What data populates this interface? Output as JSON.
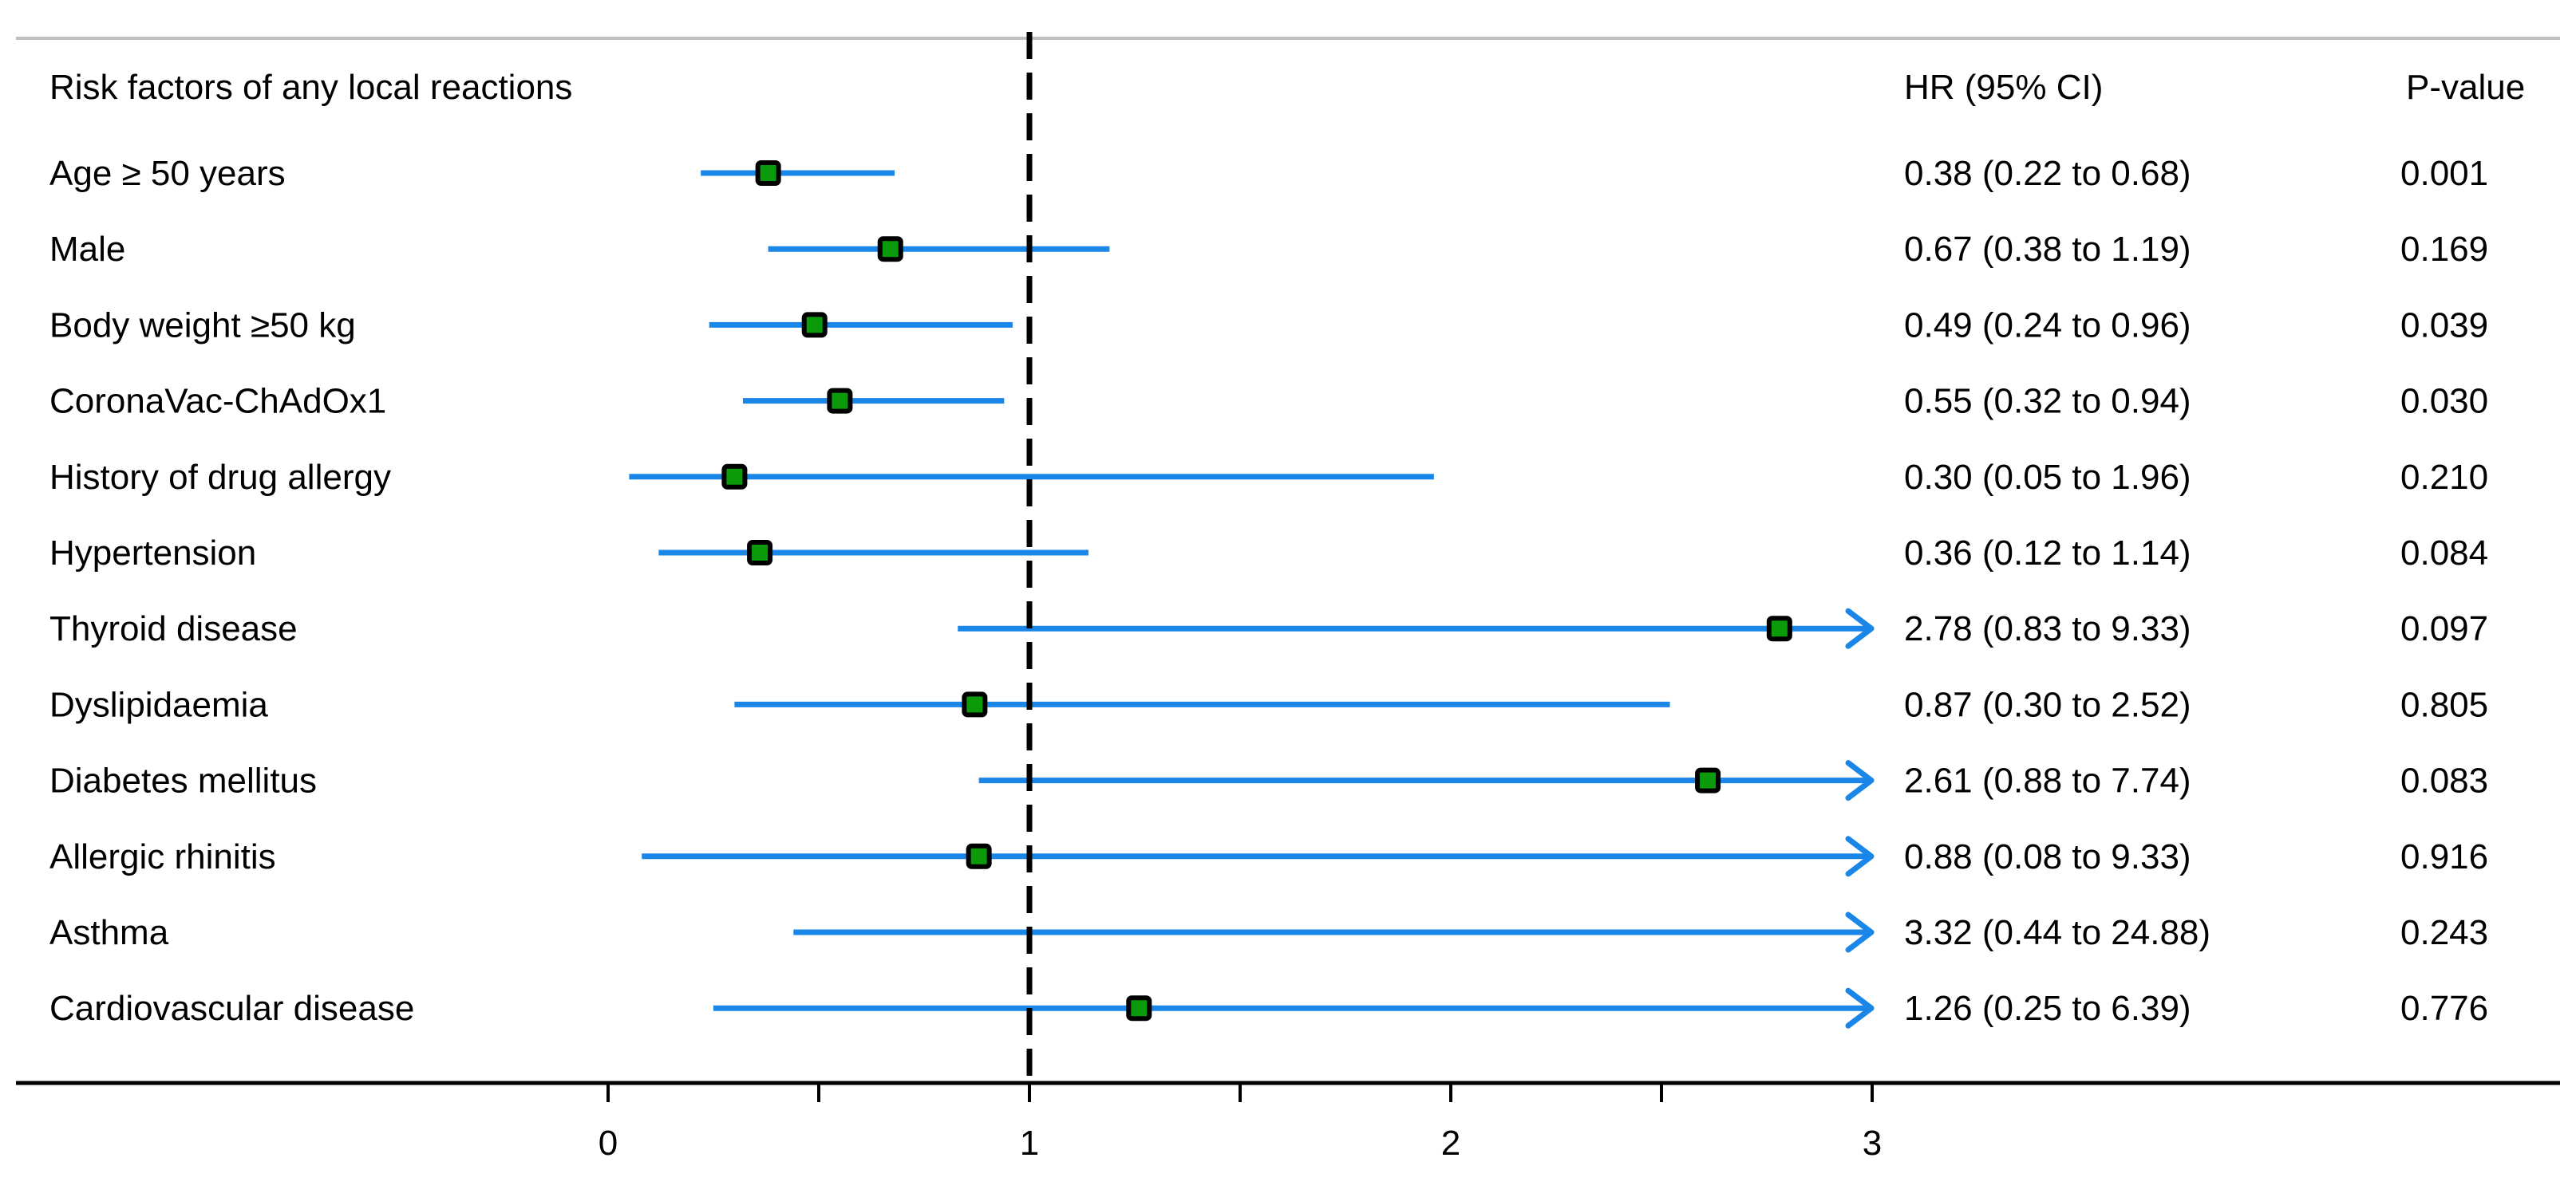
{
  "chart_data": {
    "type": "forest",
    "header_label": "Risk factors of any local reactions",
    "header_hr": "HR (95% CI)",
    "header_p": "P-value",
    "reference_line": 1,
    "xlim": [
      0,
      3
    ],
    "x_ticks": [
      {
        "value": 0,
        "label": "0"
      },
      {
        "value": 0.5,
        "label": ""
      },
      {
        "value": 1,
        "label": "1"
      },
      {
        "value": 1.5,
        "label": ""
      },
      {
        "value": 2,
        "label": "2"
      },
      {
        "value": 2.5,
        "label": ""
      },
      {
        "value": 3,
        "label": "3"
      }
    ],
    "colors": {
      "ci": "#1a86e8",
      "point_fill": "#0a9a0a",
      "point_border": "#000000",
      "axis": "#000000",
      "top_rule": "#bfbfbf"
    },
    "rows": [
      {
        "label": "Age ≥ 50 years",
        "hr": 0.38,
        "lower": 0.22,
        "upper": 0.68,
        "hr_text": "0.38 (0.22 to 0.68)",
        "p": "0.001"
      },
      {
        "label": "Male",
        "hr": 0.67,
        "lower": 0.38,
        "upper": 1.19,
        "hr_text": "0.67 (0.38 to 1.19)",
        "p": "0.169"
      },
      {
        "label": "Body weight ≥50 kg",
        "hr": 0.49,
        "lower": 0.24,
        "upper": 0.96,
        "hr_text": "0.49 (0.24 to 0.96)",
        "p": "0.039"
      },
      {
        "label": "CoronaVac-ChAdOx1",
        "hr": 0.55,
        "lower": 0.32,
        "upper": 0.94,
        "hr_text": "0.55 (0.32 to 0.94)",
        "p": "0.030"
      },
      {
        "label": "History of drug allergy",
        "hr": 0.3,
        "lower": 0.05,
        "upper": 1.96,
        "hr_text": "0.30 (0.05 to 1.96)",
        "p": "0.210"
      },
      {
        "label": "Hypertension",
        "hr": 0.36,
        "lower": 0.12,
        "upper": 1.14,
        "hr_text": "0.36 (0.12 to 1.14)",
        "p": "0.084"
      },
      {
        "label": "Thyroid disease",
        "hr": 2.78,
        "lower": 0.83,
        "upper": 9.33,
        "hr_text": "2.78 (0.83 to 9.33)",
        "p": "0.097"
      },
      {
        "label": "Dyslipidaemia",
        "hr": 0.87,
        "lower": 0.3,
        "upper": 2.52,
        "hr_text": "0.87 (0.30 to 2.52)",
        "p": "0.805"
      },
      {
        "label": "Diabetes mellitus",
        "hr": 2.61,
        "lower": 0.88,
        "upper": 7.74,
        "hr_text": "2.61 (0.88 to 7.74)",
        "p": "0.083"
      },
      {
        "label": "Allergic rhinitis",
        "hr": 0.88,
        "lower": 0.08,
        "upper": 9.33,
        "hr_text": "0.88 (0.08 to 9.33)",
        "p": "0.916"
      },
      {
        "label": "Asthma",
        "hr": 3.32,
        "lower": 0.44,
        "upper": 24.88,
        "hr_text": "3.32 (0.44 to 24.88)",
        "p": "0.243"
      },
      {
        "label": "Cardiovascular disease",
        "hr": 1.26,
        "lower": 0.25,
        "upper": 6.39,
        "hr_text": "1.26 (0.25 to 6.39)",
        "p": "0.776"
      }
    ]
  }
}
